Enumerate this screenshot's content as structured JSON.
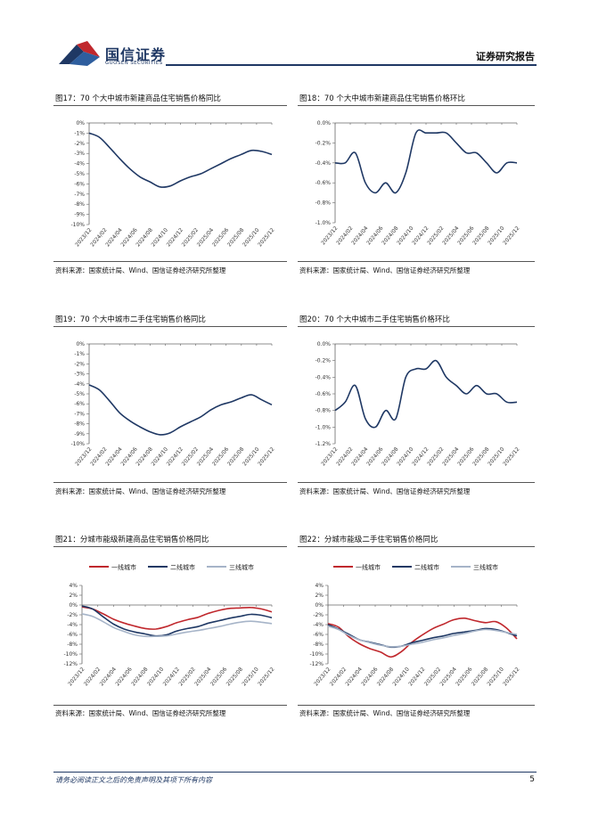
{
  "header": {
    "brand": "国信证券",
    "brand_en": "GUOSEN SECURITIES",
    "report_type": "证券研究报告"
  },
  "footer": {
    "disclaimer": "请务必阅读正文之后的免责声明及其项下所有内容",
    "page": "5"
  },
  "colors": {
    "navy": "#1f3864",
    "red": "#c0282d",
    "gray": "#a6b4c8"
  },
  "figures": [
    {
      "title": "图17：70 个大中城市新建商品住宅销售价格同比",
      "source": "资料来源：国家统计局、Wind、国信证券经济研究所整理",
      "chart_data": {
        "type": "line",
        "yticks": [
          "0%",
          "-1%",
          "-2%",
          "-3%",
          "-4%",
          "-5%",
          "-6%",
          "-7%",
          "-8%",
          "-9%",
          "-10%"
        ],
        "ylim": [
          -10,
          0
        ],
        "xticks": [
          "2023/12",
          "2024/02",
          "2024/04",
          "2024/06",
          "2024/08",
          "2024/10",
          "2024/12",
          "2025/02",
          "2025/04",
          "2025/06",
          "2025/08",
          "2025/10",
          "2025/12"
        ],
        "series": [
          {
            "name": "同比",
            "color": "#1f3864",
            "values": [
              -1.0,
              -1.4,
              -2.4,
              -3.5,
              -4.5,
              -5.3,
              -5.8,
              -6.3,
              -6.2,
              -5.7,
              -5.3,
              -5.0,
              -4.5,
              -4.0,
              -3.5,
              -3.1,
              -2.7,
              -2.8,
              -3.1
            ]
          }
        ]
      }
    },
    {
      "title": "图18：70 个大中城市新建商品住宅销售价格环比",
      "source": "资料来源：国家统计局、Wind、国信证券经济研究所整理",
      "chart_data": {
        "type": "line",
        "yticks": [
          "0.0%",
          "-0.2%",
          "-0.4%",
          "-0.6%",
          "-0.8%",
          "-1.0%"
        ],
        "ylim": [
          -1.0,
          0
        ],
        "xticks": [
          "2023/12",
          "2024/02",
          "2024/04",
          "2024/06",
          "2024/08",
          "2024/10",
          "2024/12",
          "2025/02",
          "2025/04",
          "2025/06",
          "2025/08",
          "2025/10",
          "2025/12"
        ],
        "series": [
          {
            "name": "环比",
            "color": "#1f3864",
            "values": [
              -0.4,
              -0.4,
              -0.3,
              -0.6,
              -0.7,
              -0.6,
              -0.7,
              -0.5,
              -0.1,
              -0.1,
              -0.1,
              -0.1,
              -0.2,
              -0.3,
              -0.3,
              -0.4,
              -0.5,
              -0.4,
              -0.4
            ]
          }
        ]
      }
    },
    {
      "title": "图19：70 个大中城市二手住宅销售价格同比",
      "source": "资料来源：国家统计局、Wind、国信证券经济研究所整理",
      "chart_data": {
        "type": "line",
        "yticks": [
          "0%",
          "-1%",
          "-2%",
          "-3%",
          "-4%",
          "-5%",
          "-6%",
          "-7%",
          "-8%",
          "-9%",
          "-10%"
        ],
        "ylim": [
          -10,
          0
        ],
        "xticks": [
          "2023/12",
          "2024/02",
          "2024/04",
          "2024/06",
          "2024/08",
          "2024/10",
          "2024/12",
          "2025/02",
          "2025/04",
          "2025/06",
          "2025/08",
          "2025/10",
          "2025/12"
        ],
        "series": [
          {
            "name": "同比",
            "color": "#1f3864",
            "values": [
              -4.1,
              -4.6,
              -5.7,
              -6.9,
              -7.7,
              -8.3,
              -8.8,
              -9.1,
              -8.9,
              -8.3,
              -7.8,
              -7.3,
              -6.6,
              -6.1,
              -5.8,
              -5.4,
              -5.1,
              -5.6,
              -6.1
            ]
          }
        ]
      }
    },
    {
      "title": "图20：70 个大中城市二手住宅销售价格环比",
      "source": "资料来源：国家统计局、Wind、国信证券经济研究所整理",
      "chart_data": {
        "type": "line",
        "yticks": [
          "0.0%",
          "-0.2%",
          "-0.4%",
          "-0.6%",
          "-0.8%",
          "-1.0%",
          "-1.2%"
        ],
        "ylim": [
          -1.2,
          0
        ],
        "xticks": [
          "2023/12",
          "2024/02",
          "2024/04",
          "2024/06",
          "2024/08",
          "2024/10",
          "2024/12",
          "2025/02",
          "2025/04",
          "2025/06",
          "2025/08",
          "2025/10",
          "2025/12"
        ],
        "series": [
          {
            "name": "环比",
            "color": "#1f3864",
            "values": [
              -0.8,
              -0.7,
              -0.5,
              -0.9,
              -1.0,
              -0.8,
              -0.9,
              -0.4,
              -0.3,
              -0.3,
              -0.2,
              -0.4,
              -0.5,
              -0.6,
              -0.5,
              -0.6,
              -0.6,
              -0.7,
              -0.7
            ]
          }
        ]
      }
    },
    {
      "title": "图21：分城市能级新建商品住宅销售价格同比",
      "source": "资料来源：国家统计局、Wind、国信证券经济研究所整理",
      "chart_data": {
        "type": "line",
        "legend": [
          "一线城市",
          "二线城市",
          "三线城市"
        ],
        "yticks": [
          "4%",
          "2%",
          "0%",
          "-2%",
          "-4%",
          "-6%",
          "-8%",
          "-10%",
          "-12%"
        ],
        "ylim": [
          -12,
          4
        ],
        "xticks": [
          "2023/12",
          "2024/02",
          "2024/04",
          "2024/06",
          "2024/08",
          "2024/10",
          "2024/12",
          "2025/02",
          "2025/04",
          "2025/06",
          "2025/08",
          "2025/10",
          "2025/12"
        ],
        "series": [
          {
            "name": "一线城市",
            "color": "#c0282d",
            "values": [
              -0.4,
              -0.8,
              -1.8,
              -2.9,
              -3.7,
              -4.3,
              -4.8,
              -4.9,
              -4.4,
              -3.6,
              -3.0,
              -2.5,
              -1.7,
              -1.1,
              -0.7,
              -0.6,
              -0.5,
              -0.8,
              -1.4
            ]
          },
          {
            "name": "二线城市",
            "color": "#1f3864",
            "values": [
              -0.2,
              -0.8,
              -2.4,
              -3.9,
              -4.9,
              -5.5,
              -5.9,
              -6.3,
              -6.1,
              -5.3,
              -4.8,
              -4.4,
              -3.7,
              -3.2,
              -2.7,
              -2.3,
              -1.9,
              -2.1,
              -2.6
            ]
          },
          {
            "name": "三线城市",
            "color": "#a6b4c8",
            "values": [
              -1.8,
              -2.3,
              -3.4,
              -4.6,
              -5.4,
              -6.1,
              -6.4,
              -6.4,
              -6.3,
              -5.9,
              -5.5,
              -5.2,
              -4.8,
              -4.4,
              -3.9,
              -3.5,
              -3.3,
              -3.5,
              -3.8
            ]
          }
        ]
      }
    },
    {
      "title": "图22：分城市能级二手住宅销售价格同比",
      "source": "资料来源：国家统计局、Wind、国信证券经济研究所整理",
      "chart_data": {
        "type": "line",
        "legend": [
          "一线城市",
          "二线城市",
          "三线城市"
        ],
        "yticks": [
          "4%",
          "2%",
          "0%",
          "-2%",
          "-4%",
          "-6%",
          "-8%",
          "-10%",
          "-12%"
        ],
        "ylim": [
          -12,
          4
        ],
        "xticks": [
          "2023/12",
          "2024/02",
          "2024/04",
          "2024/06",
          "2024/08",
          "2024/10",
          "2024/12",
          "2025/02",
          "2025/04",
          "2025/06",
          "2025/08",
          "2025/10",
          "2025/12"
        ],
        "series": [
          {
            "name": "一线城市",
            "color": "#c0282d",
            "values": [
              -3.8,
              -4.5,
              -6.5,
              -7.9,
              -8.9,
              -9.6,
              -10.6,
              -9.5,
              -7.6,
              -6.1,
              -4.8,
              -3.9,
              -3.0,
              -2.7,
              -3.2,
              -3.6,
              -3.4,
              -4.7,
              -6.9
            ]
          },
          {
            "name": "二线城市",
            "color": "#1f3864",
            "values": [
              -4.0,
              -4.9,
              -6.0,
              -7.1,
              -7.6,
              -8.1,
              -8.6,
              -8.4,
              -7.7,
              -7.2,
              -6.7,
              -6.3,
              -5.8,
              -5.5,
              -5.2,
              -4.8,
              -5.0,
              -5.6,
              -6.3
            ]
          },
          {
            "name": "三线城市",
            "color": "#a6b4c8",
            "values": [
              -4.3,
              -5.0,
              -6.2,
              -7.1,
              -7.7,
              -8.2,
              -8.5,
              -8.4,
              -8.0,
              -7.6,
              -7.1,
              -6.7,
              -6.2,
              -5.8,
              -5.3,
              -5.0,
              -5.2,
              -5.6,
              -6.0
            ]
          }
        ]
      }
    }
  ]
}
